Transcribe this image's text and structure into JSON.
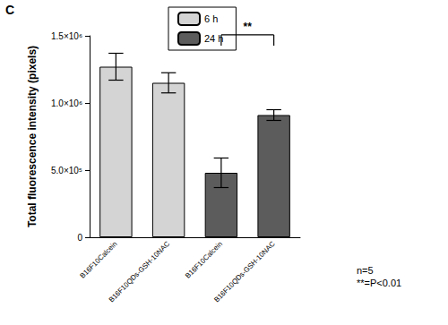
{
  "chart_data": {
    "type": "bar",
    "panel_label": "C",
    "y_label": "Total fluorescence intensity (pixels)",
    "categories": [
      "B16F10Calcein",
      "B16F10QDs-GSH-10NAC",
      "B16F10Calcein",
      "B16F10QDs-GSH-10NAC"
    ],
    "series": [
      {
        "name": "6 h",
        "color": "#d4d4d4",
        "values": [
          1270000,
          1150000,
          null,
          null
        ],
        "errors": [
          100000,
          75000,
          null,
          null
        ]
      },
      {
        "name": "24 h",
        "color": "#5c5c5c",
        "values": [
          null,
          null,
          480000,
          910000
        ],
        "errors": [
          null,
          null,
          110000,
          40000
        ]
      }
    ],
    "ylim": [
      0,
      1500000
    ],
    "yticks": [
      0,
      {
        "value": 500000,
        "label": "5.0×10⁵"
      },
      {
        "value": 1000000,
        "label": "1.0×10⁶"
      },
      {
        "value": 1500000,
        "label": "1.5×10⁶"
      }
    ],
    "legend": "top",
    "grid": false,
    "significance": [
      {
        "from": 2,
        "to": 3,
        "label": "**"
      }
    ],
    "annotations": [
      "n=5",
      "**=P<0.01"
    ]
  }
}
